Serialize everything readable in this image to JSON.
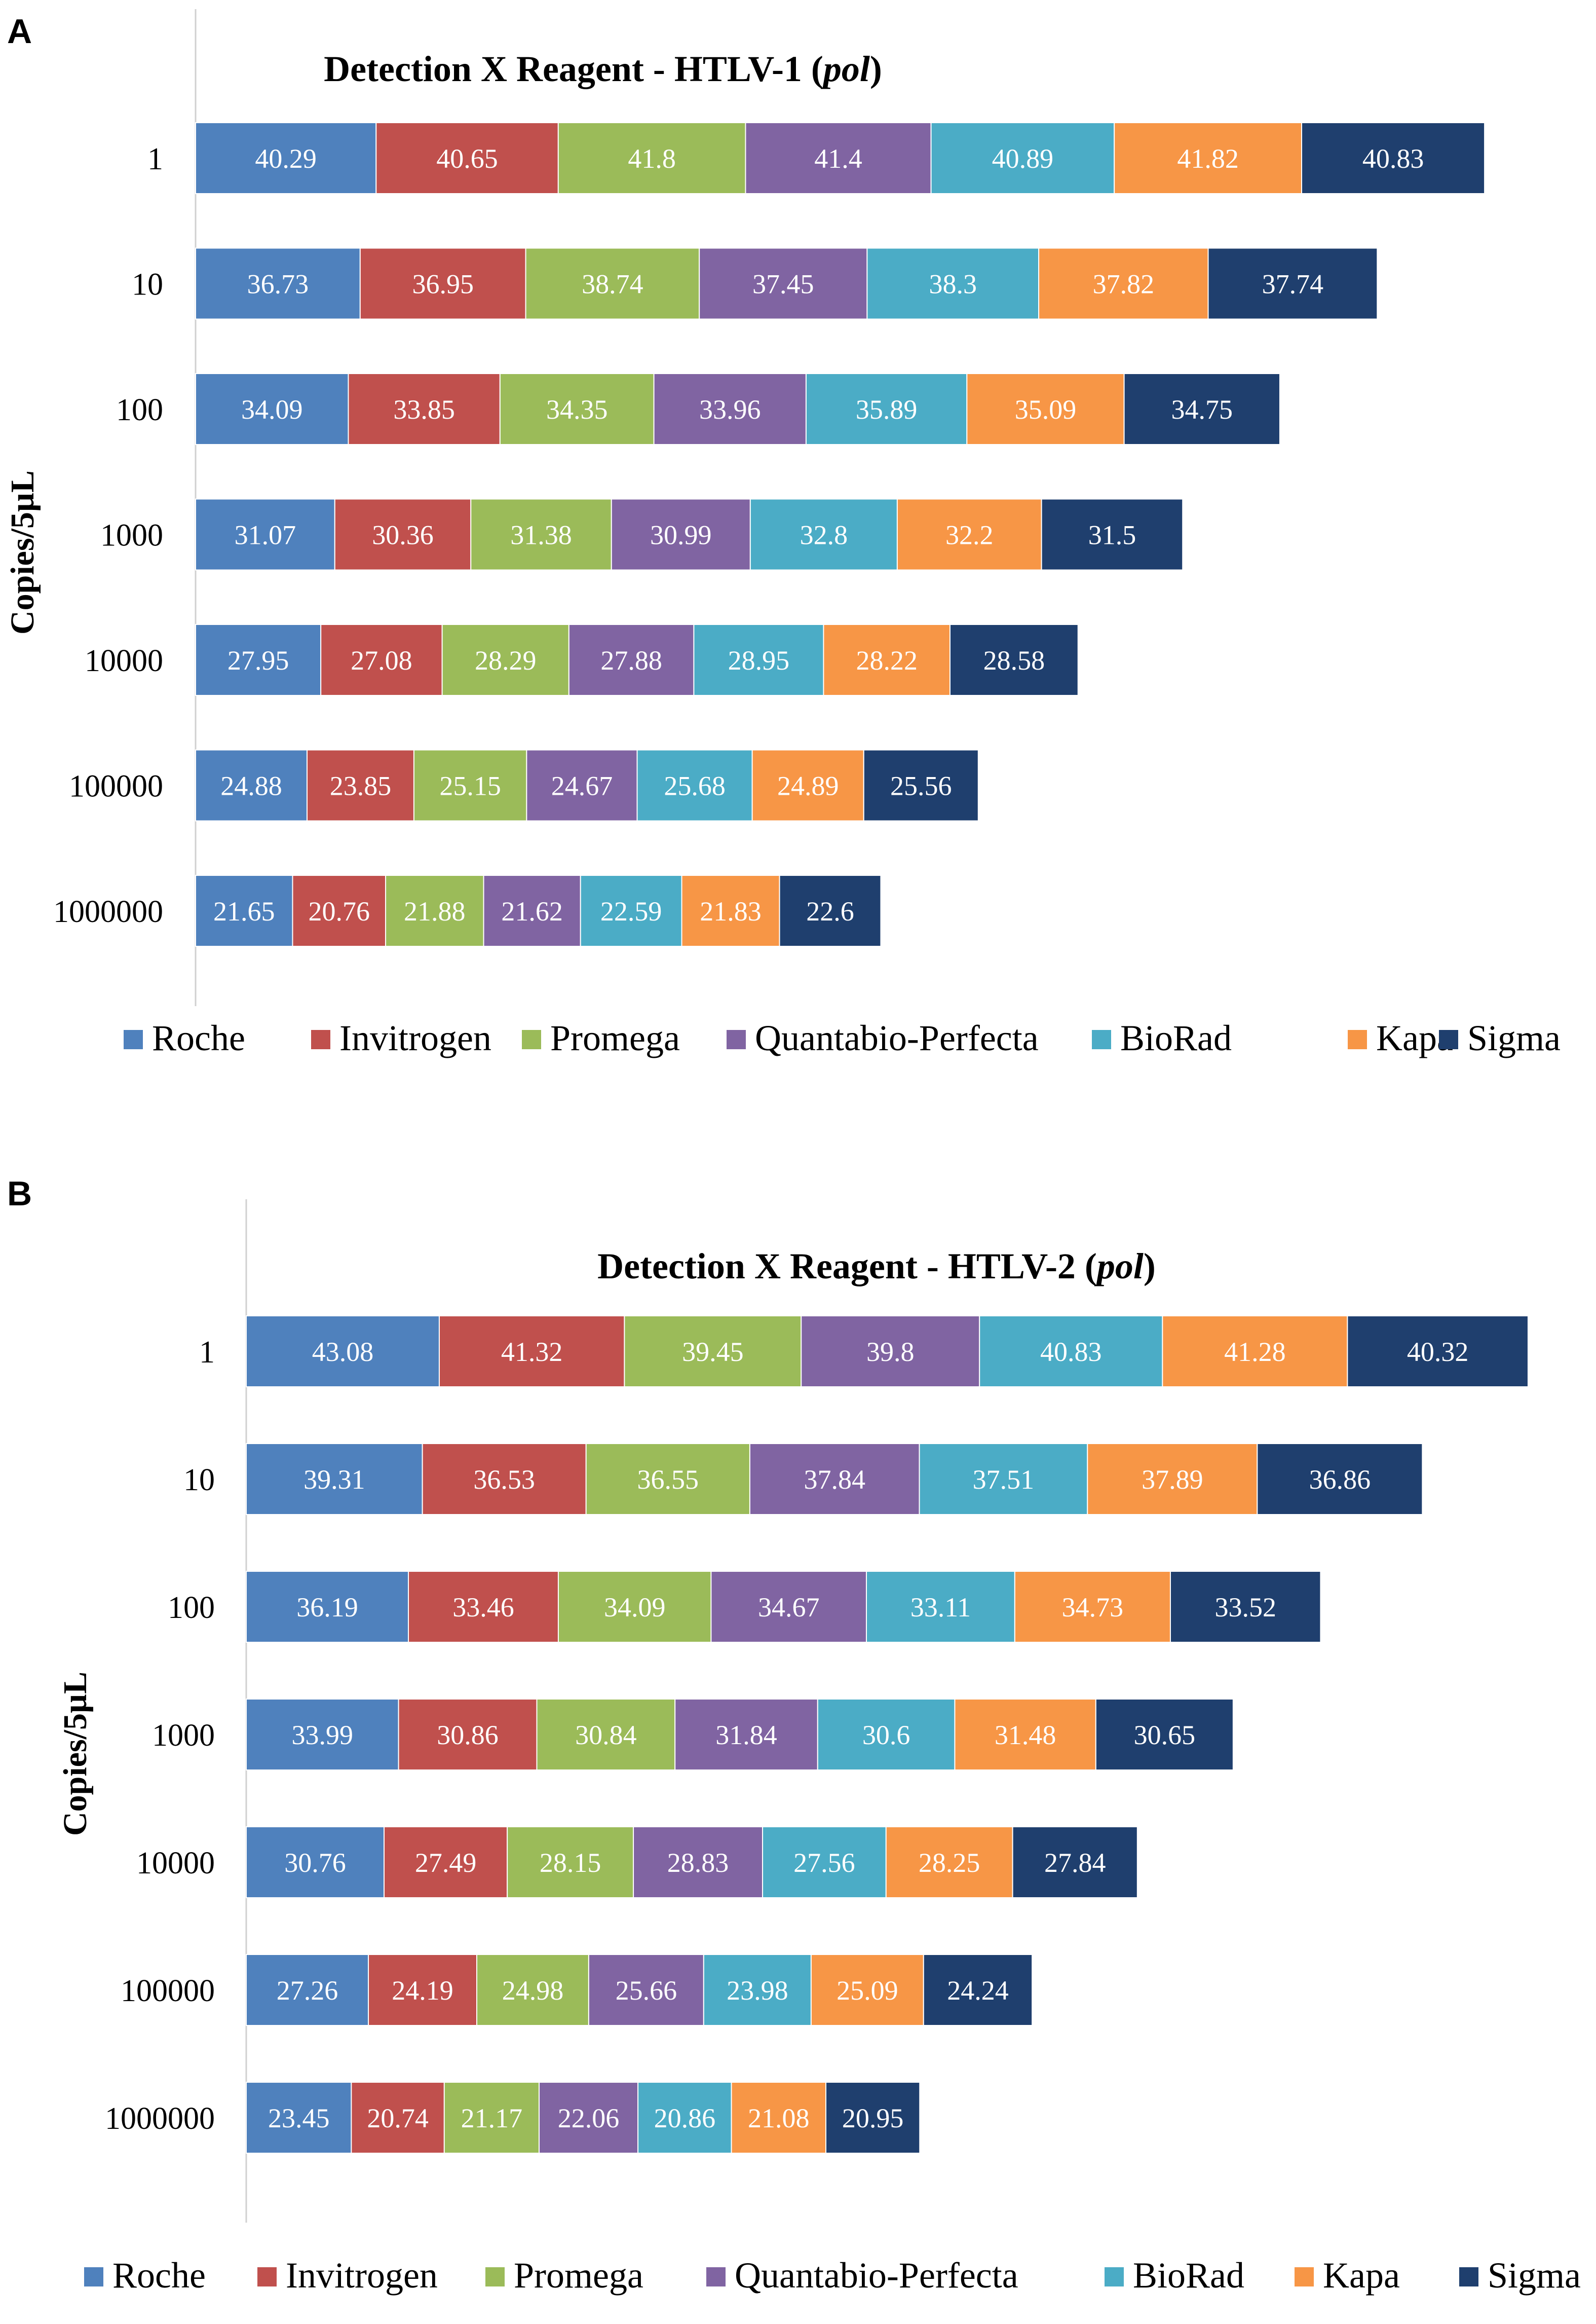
{
  "chart_data": [
    {
      "panel_label": "A",
      "type": "bar",
      "orientation": "horizontal",
      "stacked": true,
      "title_main": "Detection X  Reagent  - HTLV-1 (",
      "title_italic": "pol",
      "title_end": ")",
      "ylabel": "Copies/5µL",
      "xlabel": "",
      "categories": [
        "1",
        "10",
        "100",
        "1000",
        "10000",
        "100000",
        "1000000"
      ],
      "xlim": [
        0,
        294
      ],
      "grid": false,
      "legend_position": "bottom",
      "series": [
        {
          "name": "Roche",
          "color": "#4f81bd",
          "values": [
            40.29,
            36.73,
            34.09,
            31.07,
            27.95,
            24.88,
            21.65
          ]
        },
        {
          "name": "Invitrogen",
          "color": "#c0504d",
          "values": [
            40.65,
            36.95,
            33.85,
            30.36,
            27.08,
            23.85,
            20.76
          ]
        },
        {
          "name": "Promega",
          "color": "#9bbb59",
          "values": [
            41.8,
            38.74,
            34.35,
            31.38,
            28.29,
            25.15,
            21.88
          ]
        },
        {
          "name": "Quantabio-Perfecta",
          "color": "#8064a2",
          "values": [
            41.4,
            37.45,
            33.96,
            30.99,
            27.88,
            24.67,
            21.62
          ]
        },
        {
          "name": "BioRad",
          "color": "#4bacc6",
          "values": [
            40.89,
            38.3,
            35.89,
            32.8,
            28.95,
            25.68,
            22.59
          ]
        },
        {
          "name": "Kapa",
          "color": "#f79646",
          "values": [
            41.82,
            37.82,
            35.09,
            32.2,
            28.22,
            24.89,
            21.83
          ]
        },
        {
          "name": "Sigma",
          "color": "#1f3f6e",
          "values": [
            40.83,
            37.74,
            34.75,
            31.5,
            28.58,
            25.56,
            22.6
          ]
        }
      ]
    },
    {
      "panel_label": "B",
      "type": "bar",
      "orientation": "horizontal",
      "stacked": true,
      "title_main": "Detection X  Reagent  - HTLV-2 (",
      "title_italic": "pol",
      "title_end": ")",
      "ylabel": "Copies/5µL",
      "xlabel": "",
      "categories": [
        "1",
        "10",
        "100",
        "1000",
        "10000",
        "100000",
        "1000000"
      ],
      "xlim": [
        0,
        294
      ],
      "grid": false,
      "legend_position": "bottom",
      "series": [
        {
          "name": "Roche",
          "color": "#4f81bd",
          "values": [
            43.08,
            39.31,
            36.19,
            33.99,
            30.76,
            27.26,
            23.45
          ]
        },
        {
          "name": "Invitrogen",
          "color": "#c0504d",
          "values": [
            41.32,
            36.53,
            33.46,
            30.86,
            27.49,
            24.19,
            20.74
          ]
        },
        {
          "name": "Promega",
          "color": "#9bbb59",
          "values": [
            39.45,
            36.55,
            34.09,
            30.84,
            28.15,
            24.98,
            21.17
          ]
        },
        {
          "name": "Quantabio-Perfecta",
          "color": "#8064a2",
          "values": [
            39.8,
            37.84,
            34.67,
            31.84,
            28.83,
            25.66,
            22.06
          ]
        },
        {
          "name": "BioRad",
          "color": "#4bacc6",
          "values": [
            40.83,
            37.51,
            33.11,
            30.6,
            27.56,
            23.98,
            20.86
          ]
        },
        {
          "name": "Kapa",
          "color": "#f79646",
          "values": [
            41.28,
            37.89,
            34.73,
            31.48,
            28.25,
            25.09,
            21.08
          ]
        },
        {
          "name": "Sigma",
          "color": "#1f3f6e",
          "values": [
            40.32,
            36.86,
            33.52,
            30.65,
            27.84,
            24.24,
            20.95
          ]
        }
      ]
    }
  ]
}
